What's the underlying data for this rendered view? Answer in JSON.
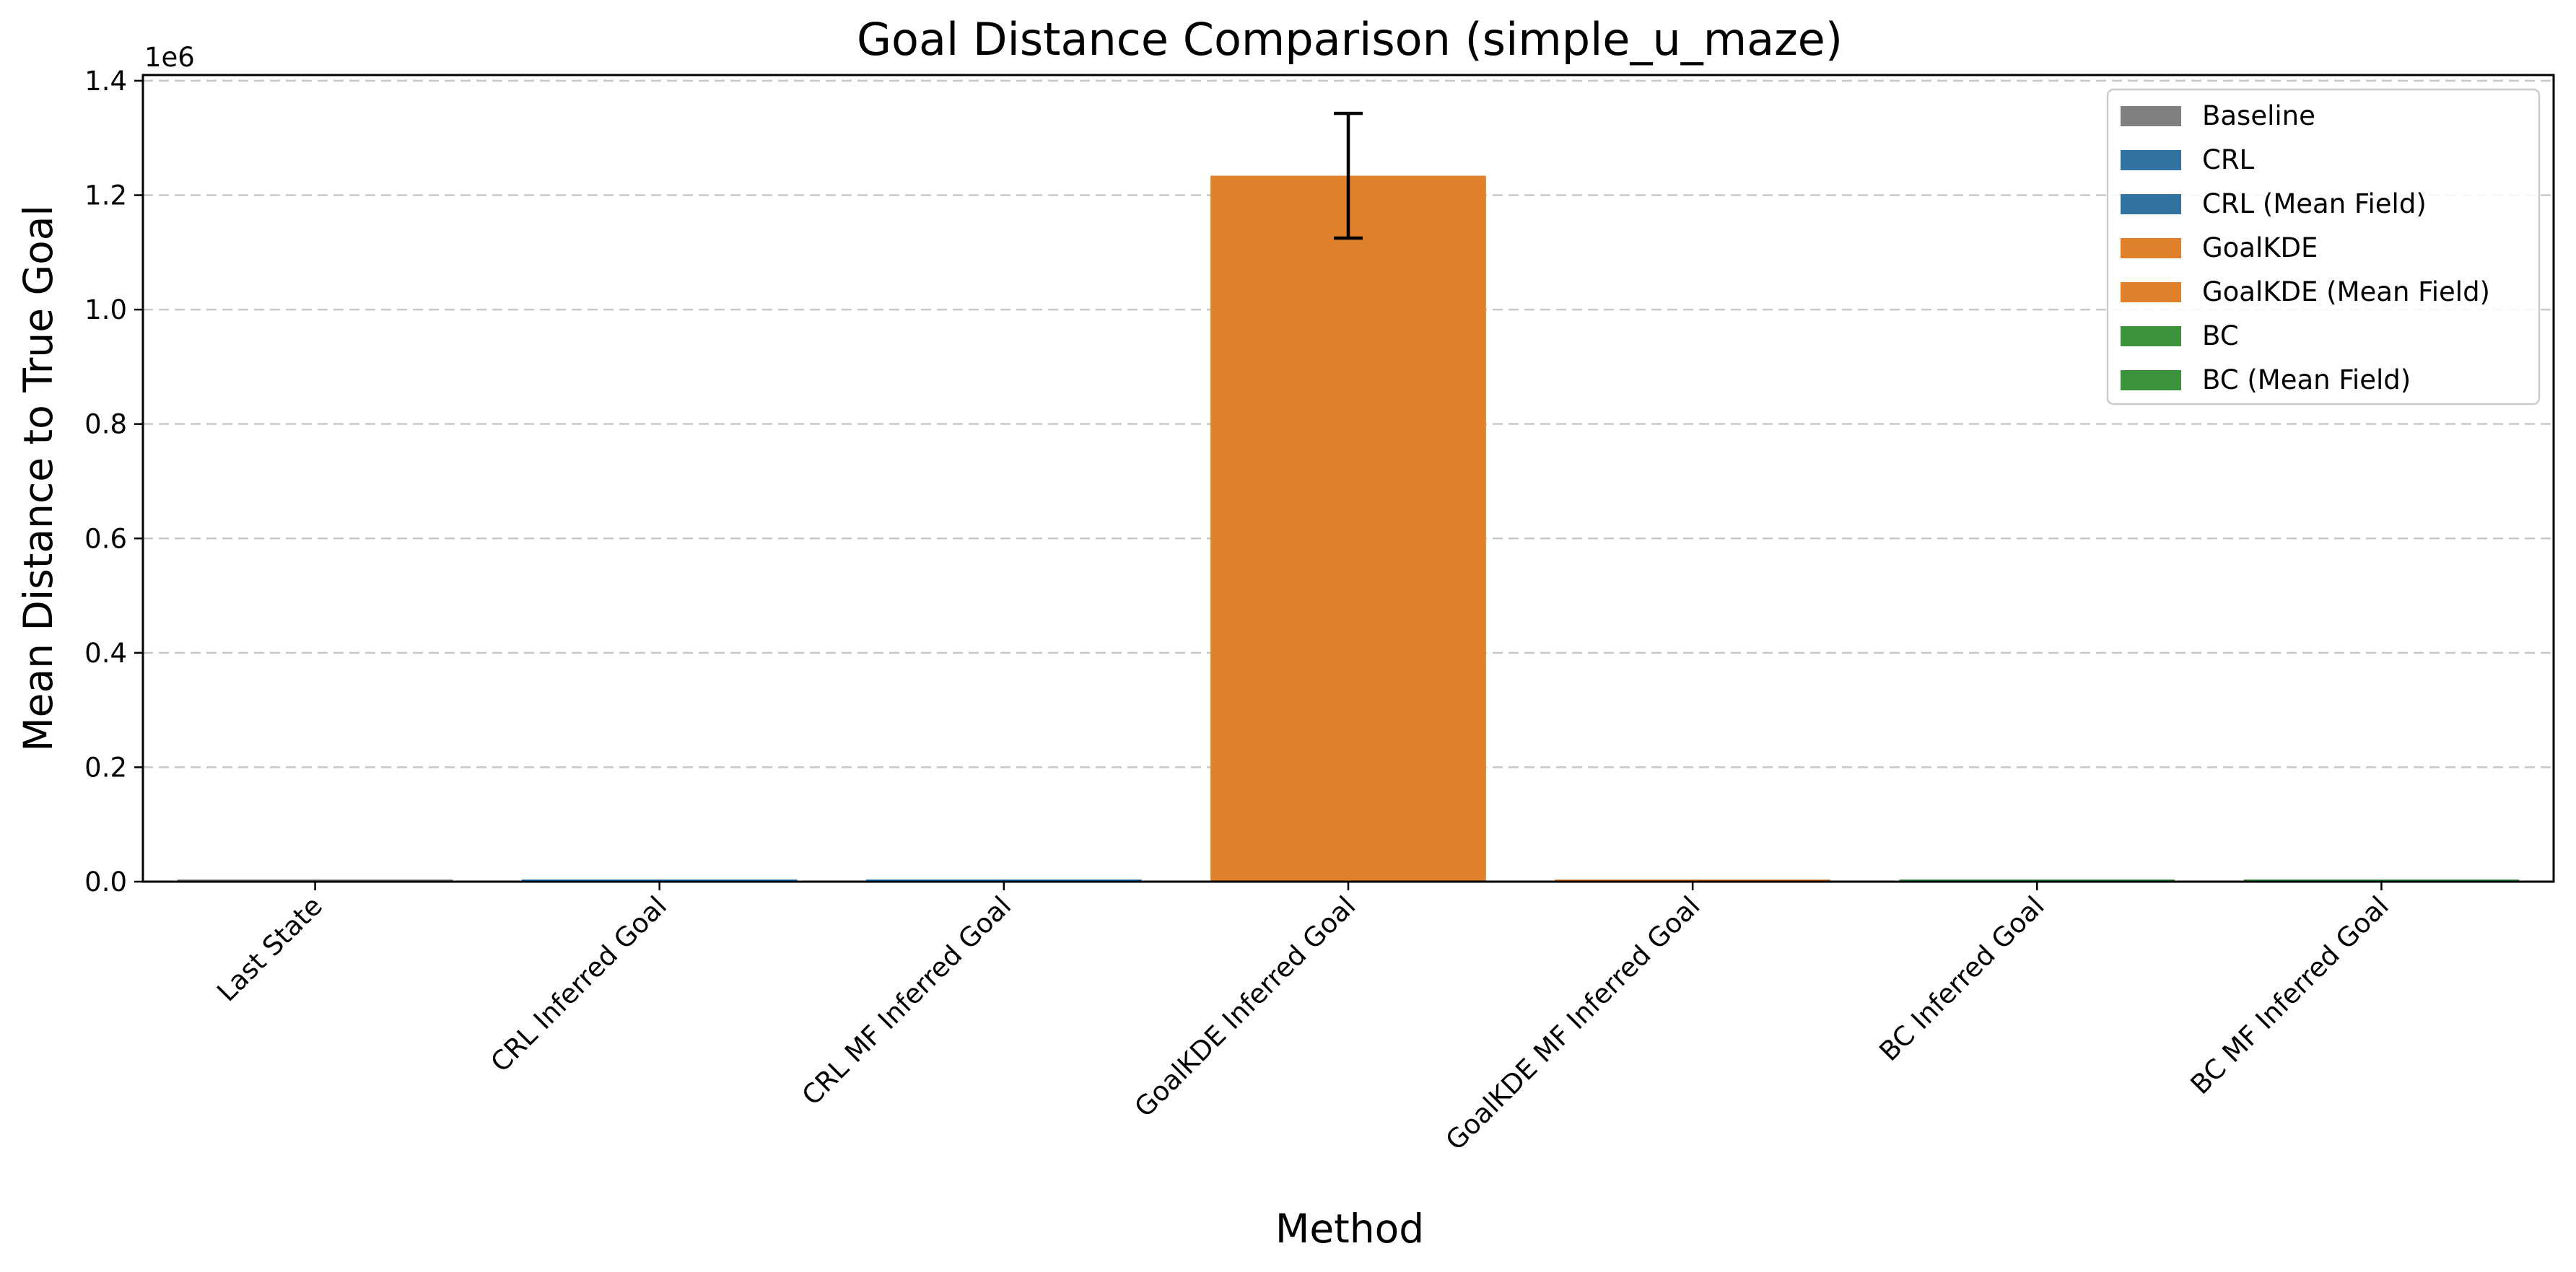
{
  "chart_data": {
    "type": "bar",
    "title": "Goal Distance Comparison (simple_u_maze)",
    "xlabel": "Method",
    "ylabel": "Mean Distance to True Goal",
    "y_offset_label": "1e6",
    "ylim": [
      0,
      1.41
    ],
    "y_ticks": [
      0.0,
      0.2,
      0.4,
      0.6,
      0.8,
      1.0,
      1.2,
      1.4
    ],
    "y_tick_labels": [
      "0.0",
      "0.2",
      "0.4",
      "0.6",
      "0.8",
      "1.0",
      "1.2",
      "1.4"
    ],
    "grid": "y-dashed",
    "categories": [
      "Last State",
      "CRL Inferred Goal",
      "CRL MF Inferred Goal",
      "GoalKDE Inferred Goal",
      "GoalKDE MF Inferred Goal",
      "BC Inferred Goal",
      "BC MF Inferred Goal"
    ],
    "values": [
      0.0,
      0.0,
      0.0,
      1.234,
      0.0,
      0.0,
      0.0
    ],
    "error_low": [
      null,
      null,
      null,
      1.125,
      null,
      null,
      null
    ],
    "error_high": [
      null,
      null,
      null,
      1.343,
      null,
      null,
      null
    ],
    "bar_colors": [
      "#7f7f7f",
      "#1f77b4",
      "#1f77b4",
      "#e1812c",
      "#e1812c",
      "#3a923a",
      "#3a923a"
    ],
    "legend_position": "top-right",
    "legend": [
      {
        "name": "Baseline",
        "color": "#7f7f7f"
      },
      {
        "name": "CRL",
        "color": "#3274a1"
      },
      {
        "name": "CRL (Mean Field)",
        "color": "#3274a1"
      },
      {
        "name": "GoalKDE",
        "color": "#e1812c"
      },
      {
        "name": "GoalKDE (Mean Field)",
        "color": "#e1812c"
      },
      {
        "name": "BC",
        "color": "#3a923a"
      },
      {
        "name": "BC (Mean Field)",
        "color": "#3a923a"
      }
    ]
  }
}
